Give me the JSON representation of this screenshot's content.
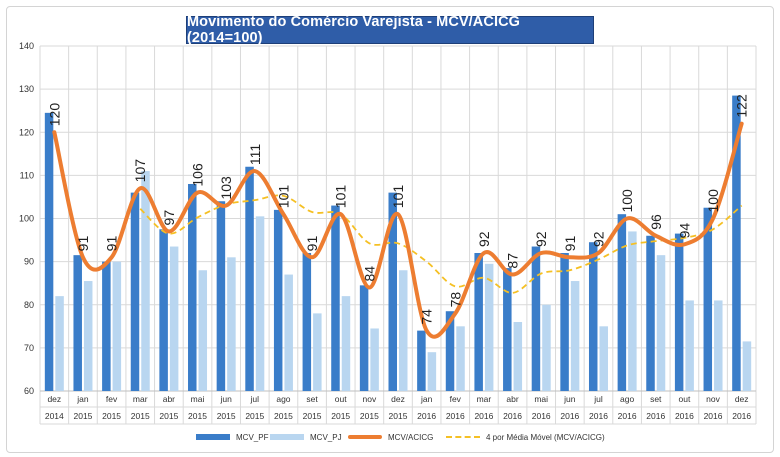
{
  "chart_data": {
    "type": "bar",
    "title": "Movimento do Comércio Varejista - MCV/ACICG (2014=100)",
    "ylim": [
      60,
      140
    ],
    "yticks": [
      60,
      70,
      80,
      90,
      100,
      110,
      120,
      130,
      140
    ],
    "grid": true,
    "legend_position": "bottom",
    "categories": [
      {
        "month": "dez",
        "year": "2014"
      },
      {
        "month": "jan",
        "year": "2015"
      },
      {
        "month": "fev",
        "year": "2015"
      },
      {
        "month": "mar",
        "year": "2015"
      },
      {
        "month": "abr",
        "year": "2015"
      },
      {
        "month": "mai",
        "year": "2015"
      },
      {
        "month": "jun",
        "year": "2015"
      },
      {
        "month": "jul",
        "year": "2015"
      },
      {
        "month": "ago",
        "year": "2015"
      },
      {
        "month": "set",
        "year": "2015"
      },
      {
        "month": "out",
        "year": "2015"
      },
      {
        "month": "nov",
        "year": "2015"
      },
      {
        "month": "dez",
        "year": "2015"
      },
      {
        "month": "jan",
        "year": "2016"
      },
      {
        "month": "fev",
        "year": "2016"
      },
      {
        "month": "mar",
        "year": "2016"
      },
      {
        "month": "abr",
        "year": "2016"
      },
      {
        "month": "mai",
        "year": "2016"
      },
      {
        "month": "jun",
        "year": "2016"
      },
      {
        "month": "jul",
        "year": "2016"
      },
      {
        "month": "ago",
        "year": "2016"
      },
      {
        "month": "set",
        "year": "2016"
      },
      {
        "month": "out",
        "year": "2016"
      },
      {
        "month": "nov",
        "year": "2016"
      },
      {
        "month": "dez",
        "year": "2016"
      }
    ],
    "series": [
      {
        "name": "MCV_PF",
        "kind": "bar",
        "color": "#3a7dc9",
        "values": [
          124.5,
          91.5,
          90,
          106,
          97.5,
          108,
          104,
          112,
          102,
          92,
          103,
          84.5,
          106,
          74,
          78.5,
          92,
          88.5,
          93.5,
          92,
          94.5,
          101,
          96,
          96.5,
          102.5,
          128.5
        ]
      },
      {
        "name": "MCV_PJ",
        "kind": "bar",
        "color": "#b9d6f0",
        "values": [
          82,
          85.5,
          90,
          111,
          93.5,
          88,
          91,
          100.5,
          87,
          78,
          82,
          74.5,
          88,
          69,
          75,
          89.5,
          76,
          80,
          85.5,
          75,
          97,
          91.5,
          81,
          81,
          71.5
        ]
      },
      {
        "name": "MCV/ACICG",
        "kind": "line",
        "color": "#ed7d31",
        "values": [
          120,
          91,
          91,
          107,
          97,
          106,
          103,
          111,
          101,
          91,
          101,
          84,
          101,
          74,
          78,
          92,
          87,
          92,
          91,
          92,
          100,
          96,
          94,
          100,
          122
        ]
      },
      {
        "name": "4 por Média Móvel (MCV/ACICG)",
        "kind": "moving-average",
        "color": "#f5c024",
        "values": [
          null,
          null,
          null,
          102.25,
          96.5,
          100.25,
          103.25,
          104.25,
          105.25,
          101.5,
          101,
          94.25,
          94.25,
          90,
          84.25,
          86.25,
          82.75,
          87.25,
          88,
          90.5,
          93.75,
          94.75,
          95.5,
          97.5,
          103
        ]
      }
    ],
    "data_labels": [
      120,
      91,
      91,
      107,
      97,
      106,
      103,
      111,
      101,
      91,
      101,
      84,
      101,
      74,
      78,
      92,
      87,
      92,
      91,
      92,
      100,
      96,
      94,
      100,
      122
    ]
  },
  "legend": {
    "items": [
      {
        "label": "MCV_PF"
      },
      {
        "label": "MCV_PJ"
      },
      {
        "label": "MCV/ACICG"
      },
      {
        "label": "4 por Média Móvel (MCV/ACICG)"
      }
    ]
  }
}
